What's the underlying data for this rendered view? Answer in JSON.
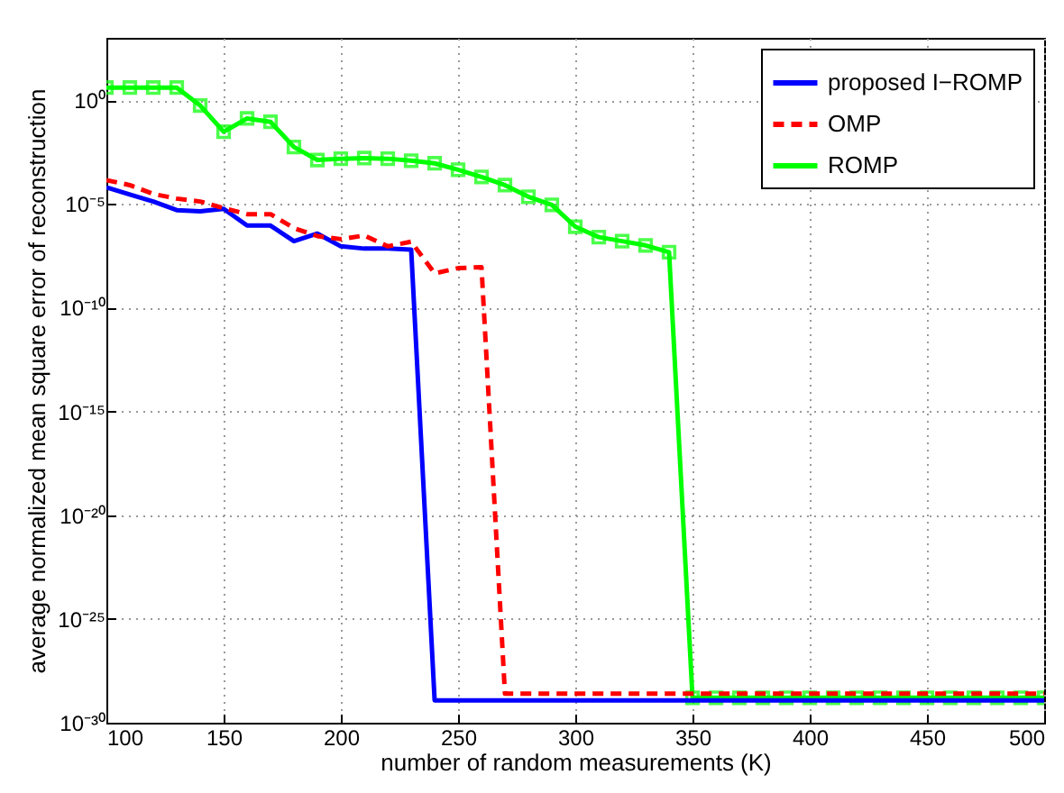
{
  "chart_data": {
    "type": "line",
    "xlabel": "number of random measurements (K)",
    "ylabel": "average normalized mean square error of reconstruction",
    "x": [
      100,
      110,
      120,
      130,
      140,
      150,
      160,
      170,
      180,
      190,
      200,
      210,
      220,
      230,
      240,
      250,
      260,
      270,
      280,
      290,
      300,
      310,
      320,
      330,
      340,
      350,
      360,
      370,
      380,
      390,
      400,
      410,
      420,
      430,
      440,
      450,
      460,
      470,
      480,
      490,
      500
    ],
    "series": [
      {
        "name": "proposed I−ROMP",
        "color": "#0000ff",
        "line_style": "solid",
        "marker": "none",
        "values": [
          6.3e-05,
          2.8e-05,
          1.3e-05,
          5e-06,
          4.4e-06,
          5.8e-06,
          9e-07,
          9e-07,
          1.6e-07,
          3.7e-07,
          9e-08,
          7e-08,
          7e-08,
          6.3e-08,
          1.2e-29,
          1.2e-29,
          1.2e-29,
          1.2e-29,
          1.2e-29,
          1.2e-29,
          1.2e-29,
          1.2e-29,
          1.2e-29,
          1.2e-29,
          1.2e-29,
          1.2e-29,
          1.2e-29,
          1.2e-29,
          1.2e-29,
          1.2e-29,
          1.2e-29,
          1.2e-29,
          1.2e-29,
          1.2e-29,
          1.2e-29,
          1.2e-29,
          1.2e-29,
          1.2e-29,
          1.2e-29,
          1.2e-29,
          1.2e-29
        ]
      },
      {
        "name": "OMP",
        "color": "#ff0000",
        "line_style": "dashed",
        "marker": "none",
        "values": [
          0.00014,
          8e-05,
          3e-05,
          1.8e-05,
          1.3e-05,
          6.3e-06,
          3.2e-06,
          3.2e-06,
          6.8e-07,
          2.8e-07,
          2e-07,
          3e-07,
          9e-08,
          1.5e-07,
          4.5e-09,
          8e-09,
          9e-09,
          2.5e-29,
          2.5e-29,
          2.5e-29,
          2.5e-29,
          2.5e-29,
          2.5e-29,
          2.5e-29,
          2.5e-29,
          2.5e-29,
          2.5e-29,
          2.5e-29,
          2.5e-29,
          2.5e-29,
          2.5e-29,
          2.5e-29,
          2.5e-29,
          2.5e-29,
          2.5e-29,
          2.5e-29,
          2.5e-29,
          2.5e-29,
          2.5e-29,
          2.5e-29,
          2.5e-29
        ]
      },
      {
        "name": "ROMP",
        "color": "#00ff00",
        "line_style": "solid",
        "marker": "square",
        "values": [
          4,
          4,
          4,
          4,
          0.55,
          0.03,
          0.13,
          0.09,
          0.0055,
          0.0013,
          0.0015,
          0.0016,
          0.0015,
          0.0012,
          0.0009,
          0.00044,
          0.0002,
          8e-05,
          2.2e-05,
          9e-06,
          8e-07,
          2.5e-07,
          1.6e-07,
          1e-07,
          4.7e-08,
          1.6e-29,
          1.6e-29,
          1.6e-29,
          1.6e-29,
          1.6e-29,
          1.6e-29,
          1.6e-29,
          1.6e-29,
          1.6e-29,
          1.6e-29,
          1.6e-29,
          1.6e-29,
          1.6e-29,
          1.6e-29,
          1.6e-29,
          1.6e-29
        ]
      }
    ],
    "log": "y",
    "xlim": [
      100,
      500
    ],
    "xticks": [
      100,
      150,
      200,
      250,
      300,
      350,
      400,
      450,
      500
    ],
    "ylim": [
      1e-30,
      1000
    ],
    "yticks": [
      {
        "value": 1,
        "label": "10⁰"
      },
      {
        "value": 1e-05,
        "label": "10⁻⁵"
      },
      {
        "value": 1e-10,
        "label": "10⁻¹⁰"
      },
      {
        "value": 1e-15,
        "label": "10⁻¹⁵"
      },
      {
        "value": 1e-20,
        "label": "10⁻²⁰"
      },
      {
        "value": 1e-25,
        "label": "10⁻²⁵"
      },
      {
        "value": 1e-30,
        "label": "10⁻³⁰"
      }
    ],
    "grid": true,
    "legend": "top right"
  }
}
